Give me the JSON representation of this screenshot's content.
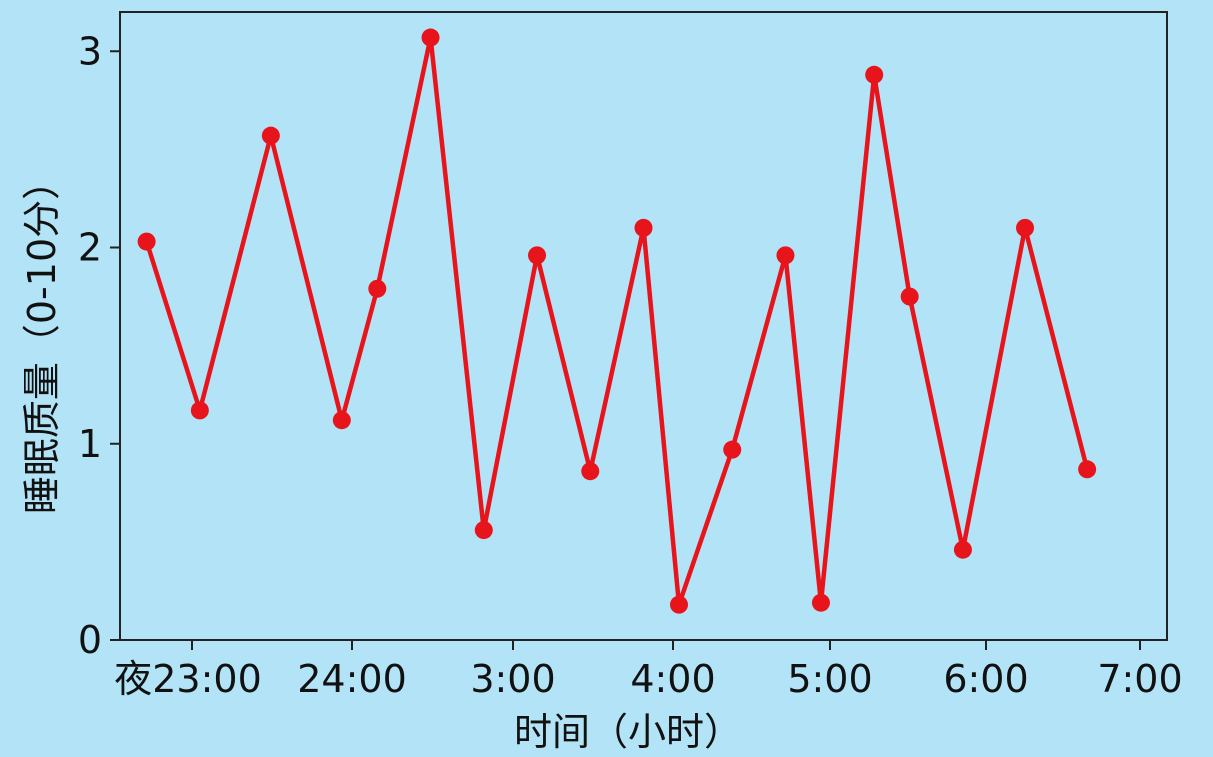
{
  "chart_data": {
    "type": "line",
    "title": "",
    "xlabel": "时间（小时）",
    "ylabel": "睡眠质量（0-10分）",
    "ylim": [
      0,
      3.2
    ],
    "y_ticks": [
      0,
      1,
      2,
      3
    ],
    "x_ticks": [
      "夜23:00",
      "24:00",
      "3:00",
      "4:00",
      "5:00",
      "6:00",
      "7:00"
    ],
    "grid": false,
    "legend": "none",
    "colors": {
      "background": "#b2e3f7",
      "line": "#e8141b",
      "axis": "#222222",
      "text": "#111111"
    },
    "series": [
      {
        "x": [
          0,
          0.3,
          0.7,
          1.1,
          1.3,
          1.6,
          1.9,
          2.2,
          2.5,
          2.8,
          3.0,
          3.3,
          3.6,
          3.8,
          4.1,
          4.3,
          4.6,
          4.95,
          5.3,
          5.6
        ],
        "values": [
          2.03,
          1.17,
          2.57,
          1.12,
          1.79,
          3.07,
          0.56,
          1.96,
          0.86,
          2.1,
          0.18,
          0.97,
          1.96,
          0.19,
          2.88,
          1.75,
          0.46,
          2.1,
          0.87,
          null
        ]
      }
    ]
  }
}
